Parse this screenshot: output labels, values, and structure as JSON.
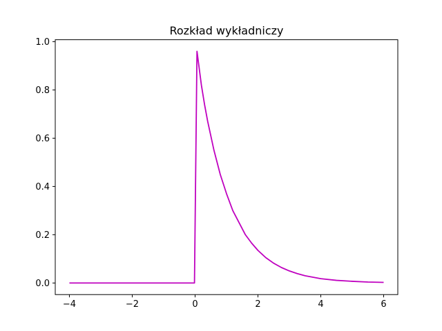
{
  "chart_data": {
    "type": "line",
    "title": "Rozkład wykładniczy",
    "xlabel": "",
    "ylabel": "",
    "xlim": [
      -4.45,
      6.45
    ],
    "ylim": [
      -0.048,
      1.008
    ],
    "grid": false,
    "line_color": "#bf00bf",
    "x_ticks": [
      -4,
      -2,
      0,
      2,
      4,
      6
    ],
    "x_tick_labels": [
      "−4",
      "−2",
      "0",
      "2",
      "4",
      "6"
    ],
    "y_ticks": [
      0.0,
      0.2,
      0.4,
      0.6,
      0.8,
      1.0
    ],
    "y_tick_labels": [
      "0.0",
      "0.2",
      "0.4",
      "0.6",
      "0.8",
      "1.0"
    ],
    "series": [
      {
        "name": "",
        "x": [
          -4.0,
          -3.0,
          -2.0,
          -1.0,
          -0.1,
          -0.02,
          0.06,
          0.1,
          0.2,
          0.3,
          0.4,
          0.5,
          0.6,
          0.7,
          0.8,
          0.9,
          1.0,
          1.2,
          1.4,
          1.6,
          1.8,
          2.0,
          2.25,
          2.5,
          2.75,
          3.0,
          3.25,
          3.5,
          4.0,
          4.5,
          5.0,
          5.5,
          6.0
        ],
        "y": [
          0.0,
          0.0,
          0.0,
          0.0,
          0.0,
          0.0,
          0.96,
          0.92,
          0.82,
          0.74,
          0.67,
          0.61,
          0.55,
          0.5,
          0.45,
          0.41,
          0.37,
          0.3,
          0.25,
          0.2,
          0.165,
          0.135,
          0.105,
          0.082,
          0.064,
          0.05,
          0.039,
          0.03,
          0.018,
          0.011,
          0.007,
          0.004,
          0.0025
        ]
      }
    ]
  }
}
